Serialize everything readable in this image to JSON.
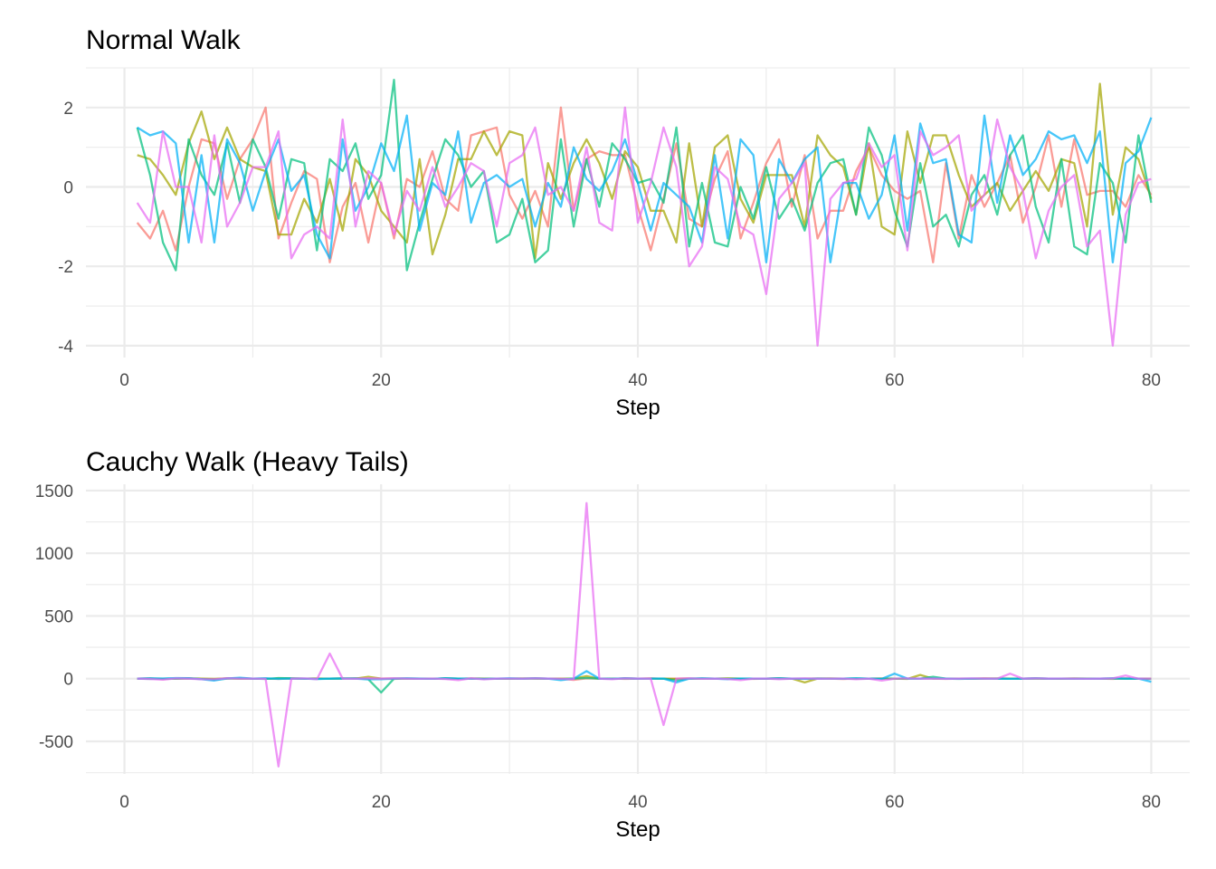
{
  "chart_data": [
    {
      "type": "line",
      "title": "Normal Walk",
      "xlabel": "Step",
      "ylabel": "",
      "xlim": [
        -3,
        83
      ],
      "ylim": [
        -4.3,
        3.0
      ],
      "x_ticks": [
        0,
        20,
        40,
        60,
        80
      ],
      "x_tick_labels": [
        "0",
        "20",
        "40",
        "60",
        "80"
      ],
      "y_ticks": [
        -4,
        -2,
        0,
        2
      ],
      "y_tick_labels": [
        "-4",
        "-2",
        "0",
        "2"
      ],
      "grid": true,
      "legend": "none",
      "x_start": 1,
      "series": [
        {
          "color": "#F8766D",
          "values": [
            -0.9,
            -1.3,
            -0.6,
            -1.6,
            0.0,
            1.2,
            1.1,
            -0.3,
            0.7,
            1.2,
            2.0,
            -1.3,
            -0.4,
            0.4,
            0.2,
            -1.9,
            -0.5,
            0.1,
            -1.4,
            0.1,
            -1.3,
            0.2,
            0.0,
            0.9,
            -0.3,
            -0.6,
            1.3,
            1.4,
            1.5,
            -0.2,
            -0.8,
            -0.1,
            -1.0,
            2.0,
            -0.6,
            0.7,
            0.9,
            0.8,
            0.8,
            -0.5,
            -1.6,
            -0.3,
            1.1,
            -0.8,
            -1.0,
            0.2,
            0.9,
            -1.3,
            -0.4,
            0.6,
            1.2,
            -0.5,
            0.8,
            -1.3,
            -0.6,
            -0.6,
            0.4,
            1.0,
            0.3,
            -0.1,
            -0.3,
            -0.1,
            -1.9,
            0.6,
            -1.3,
            0.3,
            -0.5,
            0.1,
            0.8,
            -0.9,
            0.0,
            1.3,
            -0.5,
            1.2,
            -0.2,
            -0.1,
            -0.1,
            -0.5,
            0.3,
            -0.2
          ]
        },
        {
          "color": "#A3A500",
          "values": [
            0.8,
            0.7,
            0.3,
            -0.2,
            1.1,
            1.9,
            0.7,
            1.5,
            0.7,
            0.5,
            0.4,
            -1.2,
            -1.2,
            -0.3,
            -0.9,
            0.2,
            -1.1,
            0.7,
            0.3,
            -0.6,
            -1.0,
            -1.4,
            0.7,
            -1.7,
            -0.7,
            0.7,
            0.7,
            1.4,
            0.8,
            1.4,
            1.3,
            -1.8,
            0.6,
            -0.3,
            0.6,
            1.2,
            0.6,
            -0.3,
            0.9,
            0.5,
            -0.6,
            -0.6,
            -1.4,
            1.1,
            -1.0,
            1.0,
            1.3,
            -0.3,
            -0.9,
            0.3,
            0.3,
            0.3,
            -1.0,
            1.3,
            0.8,
            0.5,
            -0.7,
            1.1,
            -1.0,
            -1.2,
            1.4,
            0.1,
            1.3,
            1.3,
            0.3,
            -0.5,
            -0.2,
            0.1,
            -0.6,
            -0.1,
            0.4,
            -0.1,
            0.7,
            0.6,
            -1.0,
            2.6,
            -0.7,
            1.0,
            0.7,
            -0.3
          ]
        },
        {
          "color": "#00BF7D",
          "values": [
            1.5,
            0.3,
            -1.4,
            -2.1,
            1.2,
            0.3,
            -0.2,
            1.1,
            -0.4,
            1.2,
            0.5,
            -0.8,
            0.7,
            0.6,
            -1.6,
            0.7,
            0.4,
            1.1,
            -0.3,
            0.3,
            2.7,
            -2.1,
            -0.9,
            0.2,
            1.2,
            0.8,
            0.0,
            0.4,
            -1.4,
            -1.2,
            -0.3,
            -1.9,
            -1.6,
            1.2,
            -1.0,
            0.7,
            -0.5,
            1.1,
            0.7,
            0.1,
            0.2,
            -0.4,
            1.5,
            -1.5,
            0.1,
            -1.4,
            -1.5,
            0.0,
            -0.8,
            0.5,
            -0.8,
            -0.3,
            -1.1,
            0.1,
            0.6,
            0.7,
            -0.7,
            1.5,
            0.8,
            -0.6,
            -1.5,
            0.6,
            -1.0,
            -0.7,
            -1.5,
            -0.2,
            0.3,
            -0.7,
            0.8,
            1.3,
            -0.5,
            -1.4,
            0.7,
            -1.5,
            -1.7,
            0.6,
            0.1,
            -1.4,
            1.3,
            -0.4
          ]
        },
        {
          "color": "#00B0F6",
          "values": [
            1.5,
            1.3,
            1.4,
            1.1,
            -1.4,
            0.8,
            -1.4,
            1.2,
            0.6,
            -0.6,
            0.4,
            1.2,
            -0.1,
            0.3,
            -1.2,
            -1.8,
            1.2,
            -0.6,
            0.0,
            1.1,
            0.4,
            1.8,
            -1.1,
            0.1,
            -0.2,
            1.4,
            -0.9,
            0.1,
            0.3,
            0.0,
            0.2,
            -1.0,
            0.1,
            -0.5,
            1.0,
            0.2,
            -0.1,
            0.4,
            1.2,
            0.1,
            -1.1,
            0.1,
            -0.2,
            -0.5,
            -1.4,
            0.8,
            -1.3,
            1.2,
            0.8,
            -1.9,
            0.7,
            0.1,
            0.7,
            1.0,
            -1.9,
            0.1,
            0.1,
            -0.8,
            -0.2,
            1.3,
            -1.1,
            1.6,
            0.6,
            0.7,
            -1.2,
            -1.4,
            1.8,
            -0.4,
            1.3,
            0.3,
            0.7,
            1.4,
            1.2,
            1.3,
            0.6,
            1.4,
            -1.9,
            0.6,
            0.9,
            1.75
          ]
        },
        {
          "color": "#E76BF3",
          "values": [
            -0.4,
            -0.9,
            1.4,
            0.0,
            0.0,
            -1.4,
            1.3,
            -1.0,
            -0.4,
            0.5,
            0.5,
            1.4,
            -1.8,
            -1.2,
            -1.0,
            -1.3,
            1.7,
            -1.0,
            0.4,
            0.1,
            -1.2,
            -0.1,
            -0.6,
            0.5,
            -0.5,
            0.0,
            0.6,
            0.4,
            -1.0,
            0.6,
            0.8,
            1.5,
            -0.2,
            0.0,
            -0.6,
            1.0,
            -0.9,
            -1.1,
            2.0,
            -0.9,
            0.1,
            1.5,
            0.5,
            -2.0,
            -1.5,
            0.5,
            0.2,
            -1.0,
            -1.2,
            -2.7,
            -0.3,
            0.1,
            0.6,
            -4.0,
            -0.3,
            0.1,
            0.2,
            1.1,
            0.5,
            0.8,
            -1.6,
            1.4,
            0.8,
            1.0,
            1.3,
            -0.6,
            -0.2,
            1.7,
            0.5,
            -0.1,
            -1.8,
            -0.6,
            0.0,
            0.3,
            -1.5,
            -1.1,
            -4.0,
            -0.7,
            0.1,
            0.2
          ]
        }
      ]
    },
    {
      "type": "line",
      "title": "Cauchy Walk (Heavy Tails)",
      "xlabel": "Step",
      "ylabel": "",
      "xlim": [
        -3,
        83
      ],
      "ylim": [
        -760,
        1550
      ],
      "x_ticks": [
        0,
        20,
        40,
        60,
        80
      ],
      "x_tick_labels": [
        "0",
        "20",
        "40",
        "60",
        "80"
      ],
      "y_ticks": [
        -500,
        0,
        500,
        1000,
        1500
      ],
      "y_tick_labels": [
        "-500",
        "0",
        "500",
        "1000",
        "1500"
      ],
      "grid": true,
      "legend": "none",
      "x_start": 1,
      "series": [
        {
          "color": "#F8766D",
          "values": [
            0,
            2,
            -3,
            1,
            0,
            -2,
            -4,
            3,
            0,
            1,
            0,
            -2,
            1,
            0,
            2,
            -1,
            0,
            3,
            -1,
            0,
            2,
            0,
            -1,
            1,
            0,
            -2,
            3,
            0,
            1,
            0,
            -1,
            2,
            0,
            -1,
            -10,
            2,
            0,
            1,
            -2,
            0,
            3,
            -1,
            0,
            2,
            -1,
            0,
            0,
            1,
            -2,
            0,
            4,
            -1,
            0,
            2,
            0,
            -3,
            1,
            0,
            2,
            -1,
            0,
            1,
            0,
            -2,
            0,
            1,
            3,
            0,
            -1,
            0,
            2,
            0,
            -1,
            0,
            1,
            0,
            -2,
            3,
            0,
            0
          ]
        },
        {
          "color": "#A3A500",
          "values": [
            0,
            1,
            -2,
            0,
            3,
            0,
            -1,
            2,
            0,
            1,
            -1,
            0,
            2,
            0,
            -1,
            0,
            3,
            0,
            15,
            0,
            -2,
            1,
            0,
            -1,
            2,
            0,
            1,
            0,
            -1,
            0,
            2,
            0,
            -1,
            0,
            1,
            20,
            0,
            -1,
            2,
            0,
            1,
            0,
            -2,
            0,
            1,
            0,
            2,
            0,
            -1,
            0,
            1,
            0,
            -30,
            0,
            2,
            0,
            -1,
            0,
            1,
            0,
            -2,
            30,
            0,
            1,
            0,
            -1,
            0,
            2,
            0,
            1,
            0,
            -1,
            0,
            2,
            0,
            1,
            0,
            -1,
            0,
            0
          ]
        },
        {
          "color": "#00BF7D",
          "values": [
            0,
            -2,
            1,
            0,
            2,
            -3,
            -8,
            0,
            3,
            0,
            -2,
            5,
            3,
            0,
            -2,
            1,
            0,
            2,
            -5,
            -110,
            0,
            2,
            0,
            -1,
            3,
            0,
            1,
            -2,
            0,
            1,
            0,
            2,
            0,
            -3,
            0,
            5,
            0,
            -1,
            2,
            0,
            1,
            0,
            -15,
            0,
            2,
            0,
            -1,
            0,
            1,
            0,
            2,
            0,
            -1,
            0,
            1,
            0,
            2,
            0,
            -1,
            0,
            1,
            0,
            15,
            0,
            -2,
            0,
            1,
            0,
            -1,
            0,
            2,
            0,
            1,
            0,
            -1,
            0,
            2,
            0,
            1,
            -2
          ]
        },
        {
          "color": "#00B0F6",
          "values": [
            0,
            3,
            1,
            5,
            4,
            -5,
            -15,
            2,
            8,
            0,
            3,
            -2,
            1,
            0,
            -3,
            0,
            2,
            0,
            -6,
            -4,
            0,
            2,
            0,
            -1,
            3,
            0,
            1,
            -2,
            0,
            3,
            0,
            2,
            0,
            -12,
            0,
            60,
            0,
            -1,
            3,
            0,
            1,
            0,
            -30,
            0,
            2,
            0,
            -5,
            0,
            1,
            0,
            2,
            0,
            -1,
            0,
            1,
            0,
            2,
            0,
            -1,
            40,
            1,
            0,
            2,
            0,
            -1,
            0,
            1,
            0,
            -1,
            0,
            2,
            0,
            1,
            0,
            -1,
            0,
            2,
            0,
            1,
            -25
          ]
        },
        {
          "color": "#E76BF3",
          "values": [
            0,
            -3,
            -8,
            2,
            0,
            -4,
            -5,
            3,
            0,
            1,
            -2,
            -700,
            0,
            2,
            -5,
            200,
            0,
            -1,
            3,
            0,
            2,
            0,
            -1,
            1,
            -3,
            -12,
            2,
            -6,
            0,
            1,
            0,
            2,
            0,
            -1,
            -5,
            1400,
            0,
            -4,
            2,
            0,
            1,
            -370,
            0,
            2,
            -1,
            0,
            -3,
            -12,
            0,
            1,
            -4,
            0,
            2,
            -1,
            0,
            1,
            -5,
            0,
            -15,
            0,
            2,
            0,
            1,
            -1,
            0,
            2,
            0,
            0,
            40,
            0,
            2,
            0,
            1,
            0,
            -1,
            0,
            2,
            25,
            0,
            0
          ]
        }
      ]
    }
  ]
}
